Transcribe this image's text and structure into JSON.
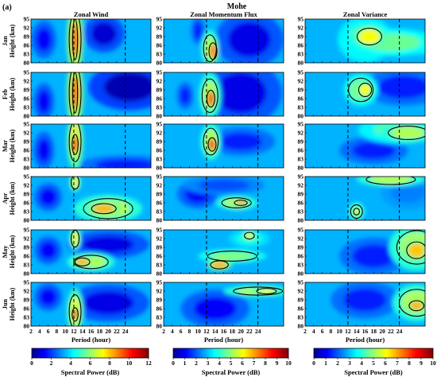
{
  "chart_data": {
    "type": "heatmap",
    "panel_label": "(a)",
    "title": "Mohe",
    "columns": [
      "Zonal Wind",
      "Zonal Momentum Flux",
      "Zonal Variance"
    ],
    "rows": [
      "Jan",
      "Feb",
      "Mar",
      "Apr",
      "May",
      "Jun"
    ],
    "xlabel": "Period (hour)",
    "ylabel": "Height (km)",
    "x_ticks": [
      2,
      4,
      6,
      8,
      10,
      12,
      14,
      16,
      18,
      20,
      22,
      24
    ],
    "y_ticks": [
      80,
      83,
      86,
      89,
      92,
      95
    ],
    "xlim": [
      2,
      30
    ],
    "ylim": [
      80,
      95
    ],
    "dashed_lines_period": [
      12,
      24
    ],
    "colorbars": [
      {
        "label": "Spectral Power (dB)",
        "min": 0,
        "max": 12,
        "ticks": [
          0,
          2,
          4,
          6,
          8,
          10,
          12
        ]
      },
      {
        "label": "Spectral Power (dB)",
        "min": 0,
        "max": 10,
        "ticks": [
          0,
          1,
          2,
          3,
          4,
          5,
          6,
          7,
          8,
          9,
          10
        ]
      },
      {
        "label": "Spectral Power (dB)",
        "min": 0,
        "max": 10,
        "ticks": [
          0,
          1,
          2,
          3,
          4,
          5,
          6,
          7,
          8,
          9,
          10
        ]
      }
    ]
  }
}
